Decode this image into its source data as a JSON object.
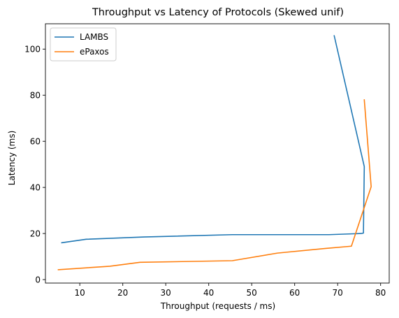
{
  "chart_data": {
    "type": "line",
    "title": "Throughput vs Latency of Protocols (Skewed unif)",
    "xlabel": "Throughput (requests / ms)",
    "ylabel": "Latency (ms)",
    "xlim": [
      2,
      82
    ],
    "ylim": [
      -1.5,
      111
    ],
    "xticks": [
      10,
      20,
      30,
      40,
      50,
      60,
      70,
      80
    ],
    "yticks": [
      0,
      20,
      40,
      60,
      80,
      100
    ],
    "grid": false,
    "legend_position": "top-left",
    "series": [
      {
        "name": "LAMBS",
        "color": "#1f77b4",
        "points": [
          [
            5.8,
            16.0
          ],
          [
            11.5,
            17.5
          ],
          [
            25.0,
            18.5
          ],
          [
            45.5,
            19.5
          ],
          [
            68.0,
            19.5
          ],
          [
            75.5,
            20.0
          ],
          [
            76.0,
            20.2
          ],
          [
            76.2,
            49.0
          ],
          [
            69.2,
            105.8
          ]
        ]
      },
      {
        "name": "ePaxos",
        "color": "#ff7f0e",
        "points": [
          [
            5.0,
            4.3
          ],
          [
            17.0,
            5.8
          ],
          [
            24.0,
            7.5
          ],
          [
            45.5,
            8.2
          ],
          [
            56.0,
            11.5
          ],
          [
            67.0,
            13.5
          ],
          [
            73.2,
            14.5
          ],
          [
            77.8,
            40.3
          ],
          [
            76.2,
            78.0
          ]
        ]
      }
    ]
  }
}
